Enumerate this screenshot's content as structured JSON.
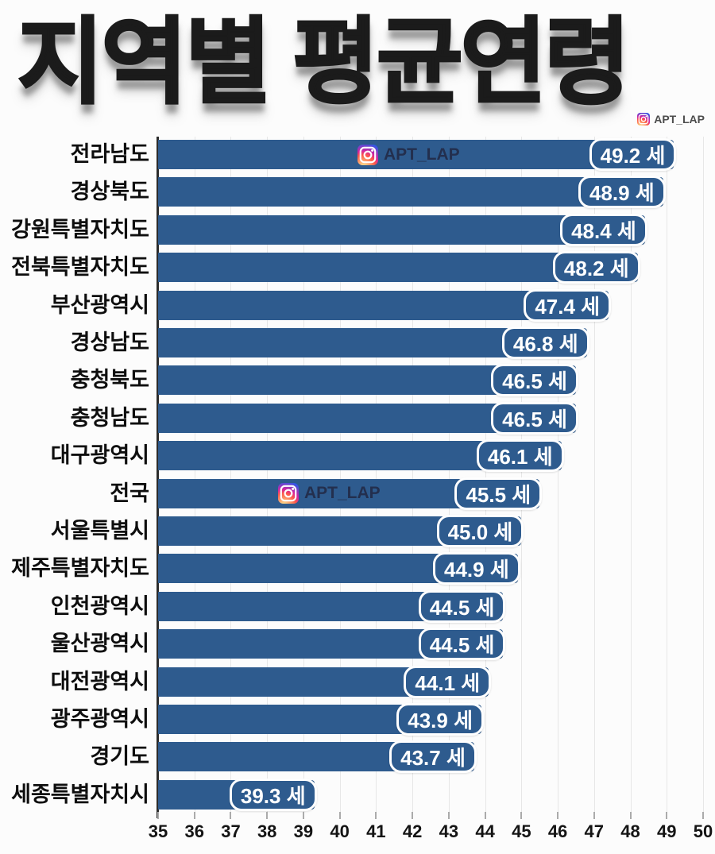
{
  "title": "지역별 평균연령",
  "watermark": {
    "handle": "APT_LAP"
  },
  "chart_data": {
    "type": "bar",
    "orientation": "horizontal",
    "title": "지역별 평균연령",
    "categories": [
      "전라남도",
      "경상북도",
      "강원특별자치도",
      "전북특별자치도",
      "부산광역시",
      "경상남도",
      "충청북도",
      "충청남도",
      "대구광역시",
      "전국",
      "서울특별시",
      "제주특별자치도",
      "인천광역시",
      "울산광역시",
      "대전광역시",
      "광주광역시",
      "경기도",
      "세종특별자치시"
    ],
    "values": [
      49.2,
      48.9,
      48.4,
      48.2,
      47.4,
      46.8,
      46.5,
      46.5,
      46.1,
      45.5,
      45.0,
      44.9,
      44.5,
      44.5,
      44.1,
      43.9,
      43.7,
      39.3
    ],
    "unit_suffix": "세",
    "xlabel": "",
    "ylabel": "",
    "xlim": [
      35,
      50
    ],
    "x_ticks": [
      35,
      36,
      37,
      38,
      39,
      40,
      41,
      42,
      43,
      44,
      45,
      46,
      47,
      48,
      49,
      50
    ],
    "grid": true,
    "legend": false,
    "bar_color": "#2e5b8e",
    "value_text_color": "#ffffff",
    "inline_watermarks": [
      {
        "row": 0,
        "handle": "APT_LAP"
      },
      {
        "row": 9,
        "handle": "APT_LAP"
      }
    ]
  }
}
